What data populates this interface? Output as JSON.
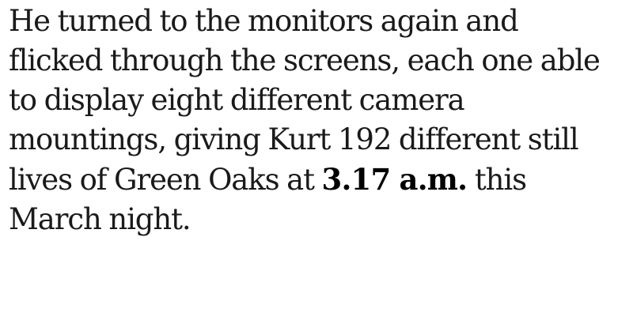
{
  "text": {
    "line1": "He turned to the monitors again and",
    "line2": "flicked through the screens, each one able",
    "line3": "to display eight different camera",
    "line4": "mountings, giving Kurt 192 different still",
    "line5_before": "lives of Green Oaks at ",
    "line5_emphasis": "3.17 a.m.",
    "line5_after": " this",
    "line6": "March night."
  }
}
